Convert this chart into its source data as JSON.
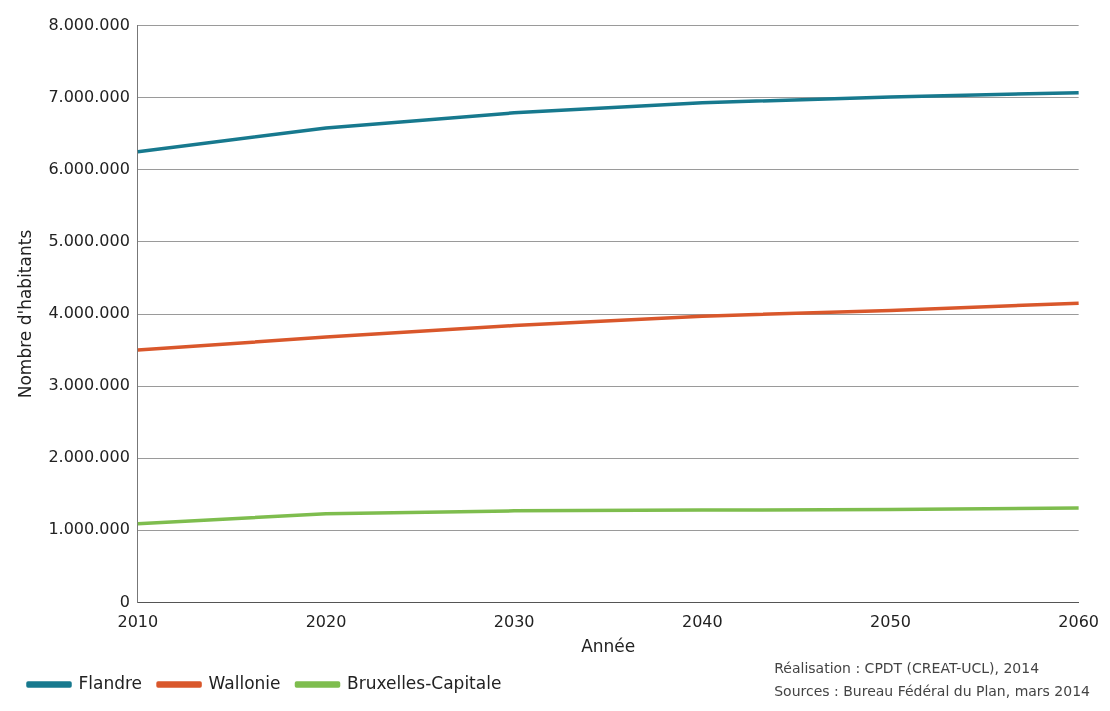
{
  "chart_data": {
    "type": "line",
    "xlabel": "Année",
    "ylabel": "Nombre d'habitants",
    "categories": [
      "2010",
      "2020",
      "2030",
      "2040",
      "2050",
      "2060"
    ],
    "series": [
      {
        "name": "Flandre",
        "color": "#17798e",
        "values": [
          6250000,
          6580000,
          6790000,
          6930000,
          7010000,
          7070000
        ]
      },
      {
        "name": "Wallonie",
        "color": "#d9572b",
        "values": [
          3500000,
          3680000,
          3840000,
          3970000,
          4050000,
          4150000
        ]
      },
      {
        "name": "Bruxelles-Capitale",
        "color": "#7ebd4e",
        "values": [
          1090000,
          1230000,
          1270000,
          1280000,
          1290000,
          1310000
        ]
      }
    ],
    "ylim": [
      0,
      8000000
    ],
    "yticks": [
      0,
      {
        "value": 1000000,
        "label": "1.000.000"
      },
      {
        "value": 2000000,
        "label": "2.000.000"
      },
      {
        "value": 3000000,
        "label": "3.000.000"
      },
      {
        "value": 4000000,
        "label": "4.000.000"
      },
      {
        "value": 5000000,
        "label": "5.000.000"
      },
      {
        "value": 6000000,
        "label": "6.000.000"
      },
      {
        "value": 7000000,
        "label": "7.000.000"
      },
      {
        "value": 8000000,
        "label": "8.000.000"
      }
    ],
    "grid": "y",
    "legend": "bottom left",
    "marker": "none",
    "line_style": "solid",
    "annotations": [
      "Réalisation : CPDT (CREAT-UCL), 2014",
      "Sources : Bureau Fédéral du Plan, mars 2014"
    ]
  }
}
